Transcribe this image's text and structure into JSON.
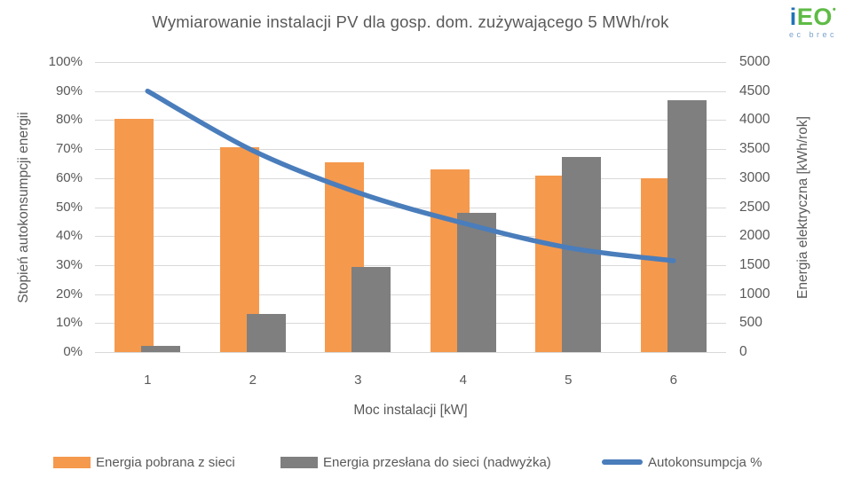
{
  "header": {
    "title": "Wymiarowanie instalacji PV dla gosp. dom. zużywającego 5 MWh/rok",
    "logo": {
      "text_i": "i",
      "text_eo": "EO",
      "dot": "•",
      "subtext": "ec brec",
      "blue": "#2173B8",
      "green": "#5FBB46",
      "sub_color": "#7BA3CB"
    }
  },
  "chart_data": {
    "type": "combo-bar-line",
    "categories": [
      "1",
      "2",
      "3",
      "4",
      "5",
      "6"
    ],
    "x_axis": {
      "title": "Moc instalacji [kW]",
      "labels": [
        "1",
        "2",
        "3",
        "4",
        "5",
        "6"
      ]
    },
    "left_axis": {
      "title": "Stopień autokonsumpcji energii",
      "min": 0,
      "max": 100,
      "tick_step": 10,
      "tick_labels": [
        "0%",
        "10%",
        "20%",
        "30%",
        "40%",
        "50%",
        "60%",
        "70%",
        "80%",
        "90%",
        "100%"
      ]
    },
    "right_axis": {
      "title": "Energia elektryczna [kWh/rok]",
      "min": 0,
      "max": 5000,
      "tick_step": 500,
      "tick_labels": [
        "0",
        "500",
        "1000",
        "1500",
        "2000",
        "2500",
        "3000",
        "3500",
        "4000",
        "4500",
        "5000"
      ]
    },
    "series": [
      {
        "name": "Energia pobrana z sieci",
        "type": "bar",
        "axis": "right",
        "unit": "kWh/rok",
        "color": "#F5994D",
        "values": [
          4020,
          3530,
          3275,
          3150,
          3050,
          3000
        ]
      },
      {
        "name": "Energia przesłana do sieci (nadwyżka)",
        "type": "bar",
        "axis": "right",
        "unit": "kWh/rok",
        "color": "#7F7F7F",
        "values": [
          100,
          655,
          1470,
          2400,
          3365,
          4350
        ]
      },
      {
        "name": "Autokonsumpcja %",
        "type": "line",
        "axis": "left",
        "unit": "%",
        "color": "#4A7DBB",
        "values": [
          90,
          69.5,
          55,
          44.5,
          36,
          31.5
        ]
      }
    ],
    "grid": {
      "color": "#D9D9D9",
      "horizontal": true,
      "vertical": false
    },
    "legend": {
      "position": "bottom"
    }
  }
}
